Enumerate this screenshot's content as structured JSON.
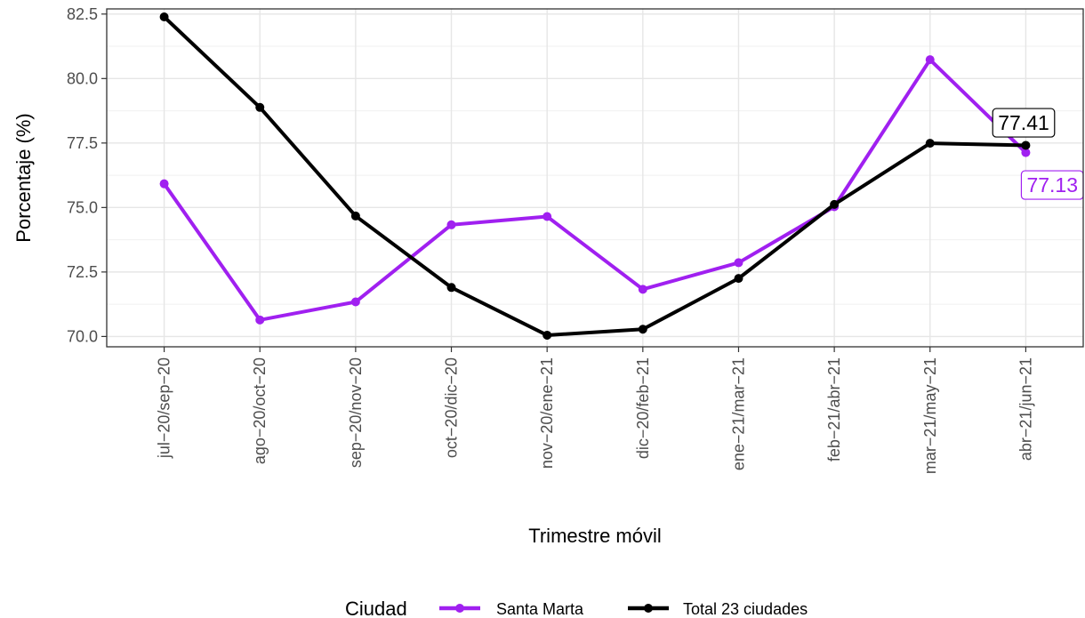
{
  "chart_data": {
    "type": "line",
    "xlabel": "Trimestre móvil",
    "ylabel": "Porcentaje (%)",
    "categories": [
      "jul−20/sep−20",
      "ago−20/oct−20",
      "sep−20/nov−20",
      "oct−20/dic−20",
      "nov−20/ene−21",
      "dic−20/feb−21",
      "ene−21/mar−21",
      "feb−21/abr−21",
      "mar−21/may−21",
      "abr−21/jun−21"
    ],
    "ylim": [
      69.6,
      82.7
    ],
    "yticks": [
      70.0,
      72.5,
      75.0,
      77.5,
      80.0,
      82.5
    ],
    "ytick_labels": [
      "70.0",
      "72.5",
      "75.0",
      "77.5",
      "80.0",
      "82.5"
    ],
    "grid": true,
    "legend": {
      "title": "Ciudad",
      "position": "bottom"
    },
    "series": [
      {
        "name": "Santa Marta",
        "color": "#a020f0",
        "values": [
          75.92,
          70.64,
          71.34,
          74.33,
          74.65,
          71.83,
          72.86,
          75.03,
          80.73,
          77.13
        ],
        "end_label": "77.13"
      },
      {
        "name": "Total 23 ciudades",
        "color": "#000000",
        "values": [
          82.39,
          78.88,
          74.67,
          71.9,
          70.05,
          70.28,
          72.25,
          75.12,
          77.49,
          77.41
        ],
        "end_label": "77.41"
      }
    ]
  }
}
